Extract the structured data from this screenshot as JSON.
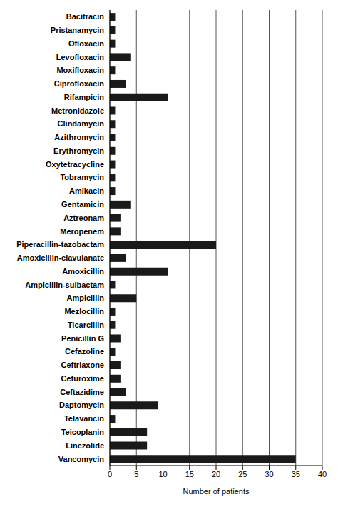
{
  "chart_data": {
    "type": "bar",
    "orientation": "horizontal",
    "x_label": "Number of patients",
    "categories": [
      "Bacitracin",
      "Pristanamycin",
      "Ofloxacin",
      "Levofloxacin",
      "Moxifloxacin",
      "Ciprofloxacin",
      "Rifampicin",
      "Metronidazole",
      "Clindamycin",
      "Azithromycin",
      "Erythromycin",
      "Oxytetracycline",
      "Tobramycin",
      "Amikacin",
      "Gentamicin",
      "Aztreonam",
      "Meropenem",
      "Piperacillin-tazobactam",
      "Amoxicillin-clavulanate",
      "Amoxicillin",
      "Ampicillin-sulbactam",
      "Ampicillin",
      "Mezlocillin",
      "Ticarcillin",
      "Penicillin G",
      "Cefazoline",
      "Ceftriaxone",
      "Cefuroxime",
      "Ceftazidime",
      "Daptomycin",
      "Telavancin",
      "Teicoplanin",
      "Linezolide",
      "Vancomycin"
    ],
    "values": [
      1,
      1,
      1,
      4,
      1,
      3,
      11,
      1,
      1,
      1,
      1,
      1,
      1,
      1,
      4,
      2,
      2,
      20,
      3,
      11,
      1,
      5,
      1,
      1,
      2,
      1,
      2,
      2,
      3,
      9,
      1,
      7,
      7,
      35
    ],
    "color": "#1a1a1a",
    "xlim": [
      0,
      40
    ],
    "xticks": [
      0,
      5,
      10,
      15,
      20,
      25,
      30,
      35,
      40
    ],
    "grid": true
  }
}
